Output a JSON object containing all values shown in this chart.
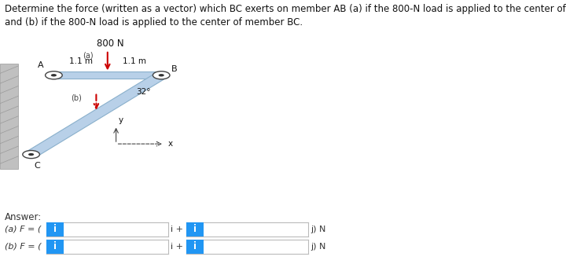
{
  "title_line1": "Determine the force (written as a vector) which BC exerts on member AB (a) if the 800-N load is applied to the center of member AB,",
  "title_line2": "and (b) if the 800-N load is applied to the center of member BC.",
  "title_fontsize": 8.5,
  "bg_color": "#ffffff",
  "diagram": {
    "A": [
      0.095,
      0.595
    ],
    "B": [
      0.285,
      0.595
    ],
    "C": [
      0.055,
      0.295
    ],
    "member_color": "#b8d0e8",
    "member_edge": "#8ab0cc",
    "bar_half": 0.013,
    "pin_r": 0.015,
    "angle_label": "32°",
    "arrow_color": "#cc0000",
    "axis_ox": 0.205,
    "axis_oy": 0.335
  },
  "answer": {
    "box_color": "#2196f3",
    "box_text_color": "#ffffff",
    "text_color": "#333333"
  }
}
